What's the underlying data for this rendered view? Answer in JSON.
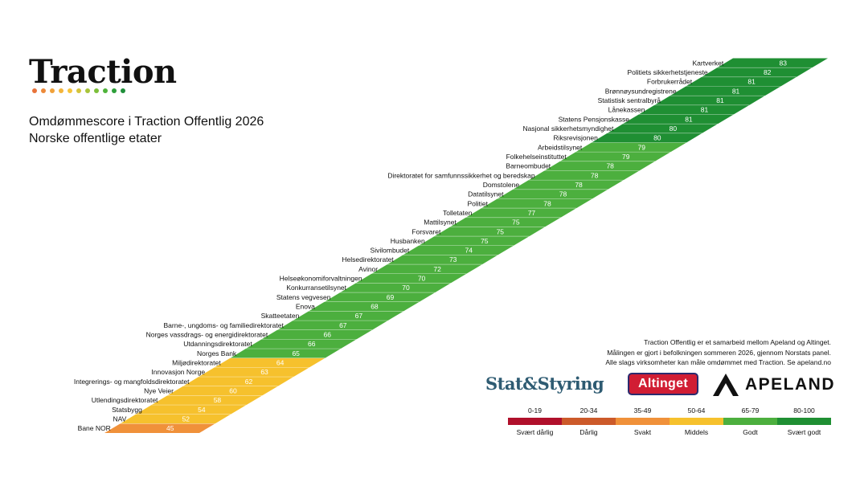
{
  "header": {
    "logo_text": "Traction",
    "logo_dot_colors": [
      "#e8733a",
      "#ec8a3a",
      "#f0a13a",
      "#f4b53a",
      "#f6c43a",
      "#d4c43a",
      "#a8c43a",
      "#7cbf3a",
      "#4fb33a",
      "#2e9f3a",
      "#1f8f3a"
    ],
    "title_line1": "Omdømmescore i Traction Offentlig 2026",
    "title_line2": "Norske offentlige etater"
  },
  "info": {
    "line1": "Traction Offentlig er et samarbeid mellom Apeland og Altinget.",
    "line2": "Målingen er gjort i befolkningen sommeren 2026, gjennom Norstats panel.",
    "line3": "Alle slags virksomheter kan måle omdømmet med Traction. Se apeland.no"
  },
  "partners": {
    "stat_styring": "Stat&Styring",
    "altinget": "Altinget",
    "apeland": "APELAND"
  },
  "legend": [
    {
      "range": "0-19",
      "label": "Svært dårlig",
      "color": "#b0102b"
    },
    {
      "range": "20-34",
      "label": "Dårlig",
      "color": "#cc5a2a"
    },
    {
      "range": "35-49",
      "label": "Svakt",
      "color": "#f0913a"
    },
    {
      "range": "50-64",
      "label": "Middels",
      "color": "#f6c12d"
    },
    {
      "range": "65-79",
      "label": "Godt",
      "color": "#4caf3e"
    },
    {
      "range": "80-100",
      "label": "Svært godt",
      "color": "#1f8f33"
    }
  ],
  "chart_data": {
    "type": "bar",
    "title": "Omdømmescore i Traction Offentlig 2026",
    "subtitle": "Norske offentlige etater",
    "categories": [
      "Kartverket",
      "Politiets sikkerhetstjeneste",
      "Forbrukerrådet",
      "Brønnøysundregistrene",
      "Statistisk sentralbyrå",
      "Lånekassen",
      "Statens Pensjonskasse",
      "Nasjonal sikkerhetsmyndighet",
      "Riksrevisjonen",
      "Arbeidstilsynet",
      "Folkehelseinstituttet",
      "Barneombudet",
      "Direktoratet for samfunnssikkerhet og beredskap",
      "Domstolene",
      "Datatilsynet",
      "Politiet",
      "Tolletaten",
      "Mattilsynet",
      "Forsvaret",
      "Husbanken",
      "Sivilombudet",
      "Helsedirektoratet",
      "Avinor",
      "Helseøkonomiforvaltningen",
      "Konkurransetilsynet",
      "Statens vegvesen",
      "Enova",
      "Skatteetaten",
      "Barne-, ungdoms- og familiedirektoratet",
      "Norges vassdrags- og energidirektoratet",
      "Utdanningsdirektoratet",
      "Norges Bank",
      "Miljødirektoratet",
      "Innovasjon Norge",
      "Integrerings- og mangfoldsdirektoratet",
      "Nye Veier",
      "Utlendingsdirektoratet",
      "Statsbygg",
      "NAV",
      "Bane NOR"
    ],
    "values": [
      83,
      82,
      81,
      81,
      81,
      81,
      81,
      80,
      80,
      79,
      79,
      78,
      78,
      78,
      78,
      78,
      77,
      75,
      75,
      75,
      74,
      73,
      72,
      70,
      70,
      69,
      68,
      67,
      67,
      66,
      66,
      65,
      64,
      63,
      62,
      60,
      58,
      54,
      52,
      45
    ]
  }
}
